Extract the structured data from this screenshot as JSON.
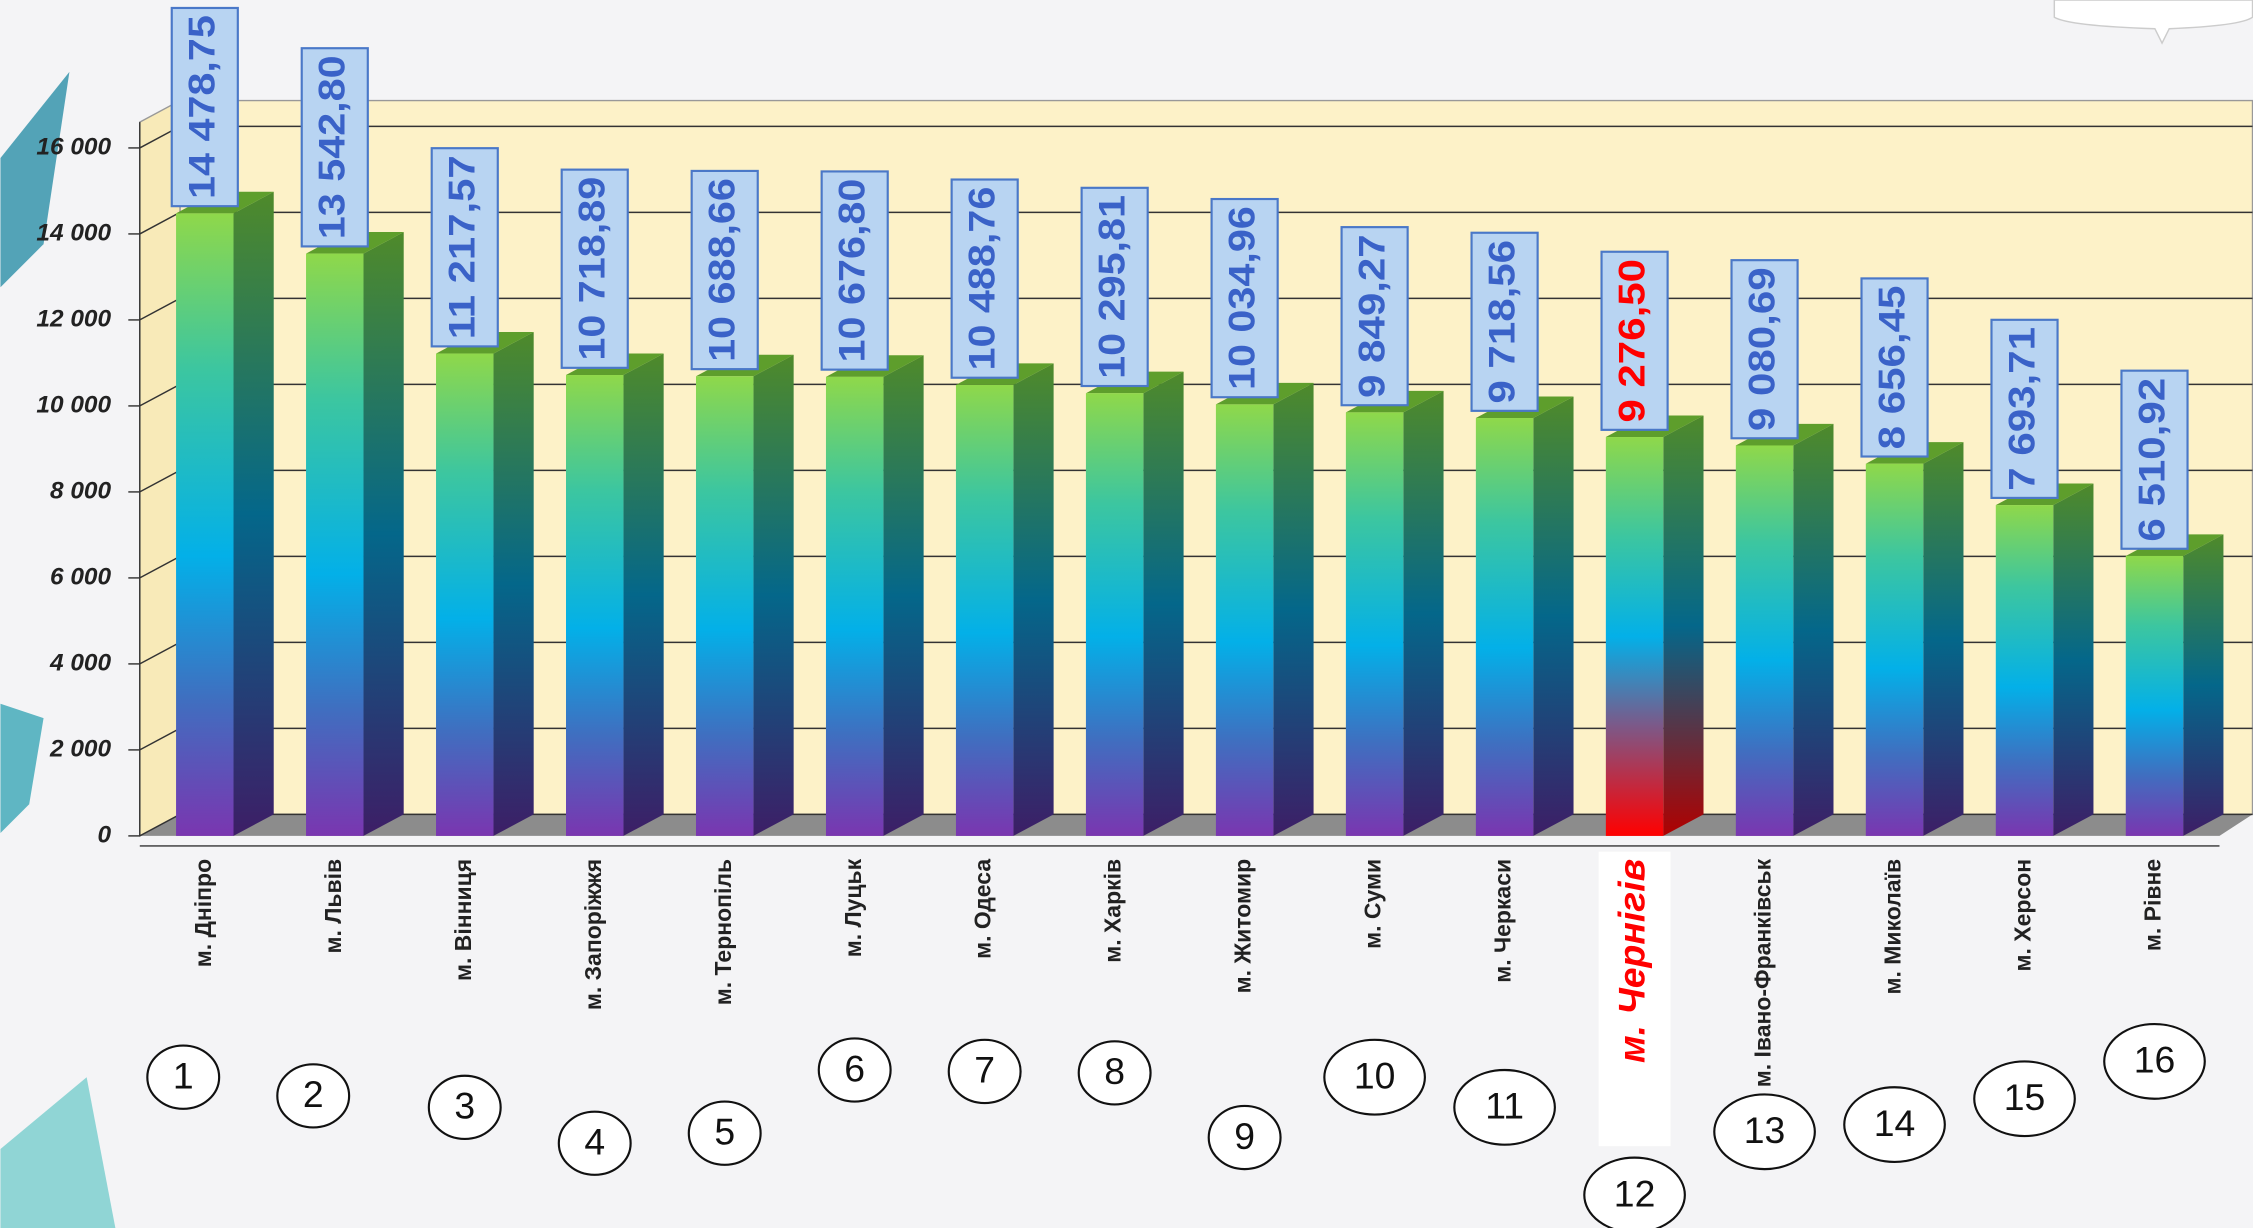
{
  "chart_data": {
    "type": "bar3d",
    "categories": [
      "м. Дніпро",
      "м. Львів",
      "м. Вінниця",
      "м. Запоріжжя",
      "м. Тернопіль",
      "м. Луцьк",
      "м. Одеса",
      "м. Харків",
      "м. Житомир",
      "м. Суми",
      "м. Черкаси",
      "м. Чернігів",
      "м. Івано-Франківськ",
      "м. Миколаїв",
      "м. Херсон",
      "м. Рівне"
    ],
    "values": [
      14478.75,
      13542.8,
      11217.57,
      10718.89,
      10688.66,
      10676.8,
      10488.76,
      10295.81,
      10034.96,
      9849.27,
      9718.56,
      9276.5,
      9080.69,
      8656.45,
      7693.71,
      6510.92
    ],
    "value_labels": [
      "14 478,75",
      "13 542,80",
      "11 217,57",
      "10 718,89",
      "10 688,66",
      "10 676,80",
      "10 488,76",
      "10 295,81",
      "10 034,96",
      "9 849,27",
      "9 718,56",
      "9 276,50",
      "9 080,69",
      "8 656,45",
      "7 693,71",
      "6 510,92"
    ],
    "ranks": [
      1,
      2,
      3,
      4,
      5,
      6,
      7,
      8,
      9,
      10,
      11,
      12,
      13,
      14,
      15,
      16
    ],
    "ylim": [
      0,
      16000
    ],
    "yticks": [
      0,
      {
        "value": 2000,
        "label": "2 000"
      },
      {
        "value": 4000,
        "label": "4 000"
      },
      {
        "value": 6000,
        "label": "6 000"
      },
      {
        "value": 8000,
        "label": "8 000"
      },
      {
        "value": 10000,
        "label": "10 000"
      },
      {
        "value": 12000,
        "label": "12 000"
      },
      {
        "value": 14000,
        "label": "14 000"
      },
      {
        "value": 16000,
        "label": "16 000"
      }
    ],
    "grid": true,
    "color": "#7ed04b",
    "highlight": 11,
    "highlight_color": "#ff0000"
  }
}
